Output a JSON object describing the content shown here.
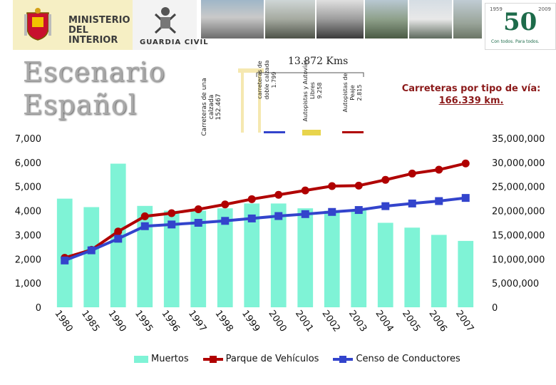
{
  "header": {
    "ministry_line1": "MINISTERIO",
    "ministry_line2": "DEL INTERIOR",
    "guardia_civil": "GUARDIA CIVIL",
    "anniv_years_start": "1959",
    "anniv_years_end": "2009",
    "anniv_number": "50",
    "anniv_motto": "Con todos. Para todos."
  },
  "title": {
    "line1": "Escenario",
    "line2": "Español"
  },
  "roads": {
    "total_kms_label": "13.872 Kms",
    "title": "Carreteras por tipo de vía:",
    "total": "166.339 km.",
    "types": [
      {
        "name": "Carreteras de una calzada",
        "km": "152.467"
      },
      {
        "name": "carreteras de doble calzada",
        "km": "1.799"
      },
      {
        "name": "Autopistas y Autovías Libres",
        "km": "9.258"
      },
      {
        "name": "Autopistas de Peaje",
        "km": "2.815"
      }
    ]
  },
  "colors": {
    "muertos": "#7ff3d6",
    "parque": "#b00000",
    "censo": "#3344cc"
  },
  "chart_data": {
    "type": "bar",
    "categories": [
      "1980",
      "1985",
      "1990",
      "1995",
      "1996",
      "1997",
      "1998",
      "1999",
      "2000",
      "2001",
      "2002",
      "2003",
      "2004",
      "2005",
      "2006",
      "2007"
    ],
    "left_axis": {
      "ylim": [
        0,
        7000
      ],
      "ticks": [
        "0",
        "1,000",
        "2,000",
        "3,000",
        "4,000",
        "5,000",
        "6,000",
        "7,000"
      ]
    },
    "right_axis": {
      "ylim": [
        0,
        35000000
      ],
      "ticks": [
        "0",
        "5,000,000",
        "10,000,000",
        "15,000,000",
        "20,000,000",
        "25,000,000",
        "30,000,000",
        "35,000,000"
      ]
    },
    "series": [
      {
        "name": "Muertos",
        "type": "bar",
        "axis": "left",
        "values": [
          4500,
          4150,
          5950,
          4200,
          4000,
          4000,
          4100,
          4300,
          4300,
          4100,
          4000,
          4050,
          3500,
          3300,
          3000,
          2750
        ]
      },
      {
        "name": "Parque de Vehículos",
        "type": "line",
        "axis": "right",
        "values": [
          10250000,
          11900000,
          15700000,
          18850000,
          19500000,
          20300000,
          21300000,
          22400000,
          23300000,
          24200000,
          25100000,
          25200000,
          26400000,
          27700000,
          28500000,
          29800000
        ]
      },
      {
        "name": "Censo de Conductores",
        "type": "line",
        "axis": "right",
        "values": [
          9700000,
          11800000,
          14200000,
          16800000,
          17150000,
          17500000,
          17900000,
          18400000,
          18900000,
          19300000,
          19750000,
          20150000,
          20950000,
          21500000,
          22000000,
          22650000
        ]
      }
    ],
    "legend_position": "bottom"
  }
}
